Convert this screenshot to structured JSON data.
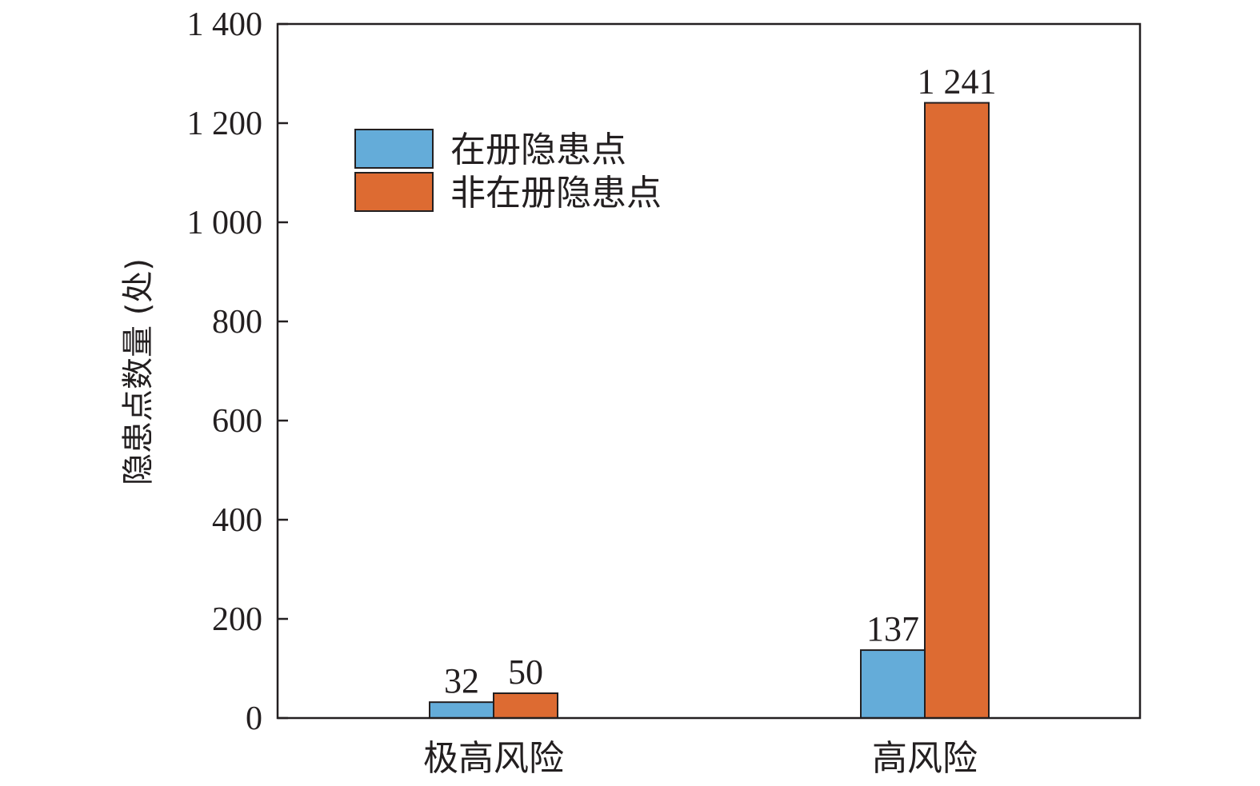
{
  "chart_data": {
    "type": "bar",
    "categories": [
      "极高风险",
      "高风险"
    ],
    "series": [
      {
        "name": "在册隐患点",
        "values": [
          32,
          137
        ],
        "color": "#64acd9"
      },
      {
        "name": "非在册隐患点",
        "values": [
          50,
          1241
        ],
        "color": "#dd6b32"
      }
    ],
    "xlabel": "",
    "ylabel": "隐患点数量 (处)",
    "ylim": [
      0,
      1400
    ],
    "yticks": [
      0,
      200,
      400,
      600,
      800,
      1000,
      1200,
      1400
    ],
    "ytick_labels": [
      "0",
      "200",
      "400",
      "600",
      "800",
      "1 000",
      "1 200",
      "1 400"
    ],
    "data_labels": [
      [
        "32",
        "137"
      ],
      [
        "50",
        "1 241"
      ]
    ],
    "grid": false,
    "legend_position": "top-left"
  }
}
